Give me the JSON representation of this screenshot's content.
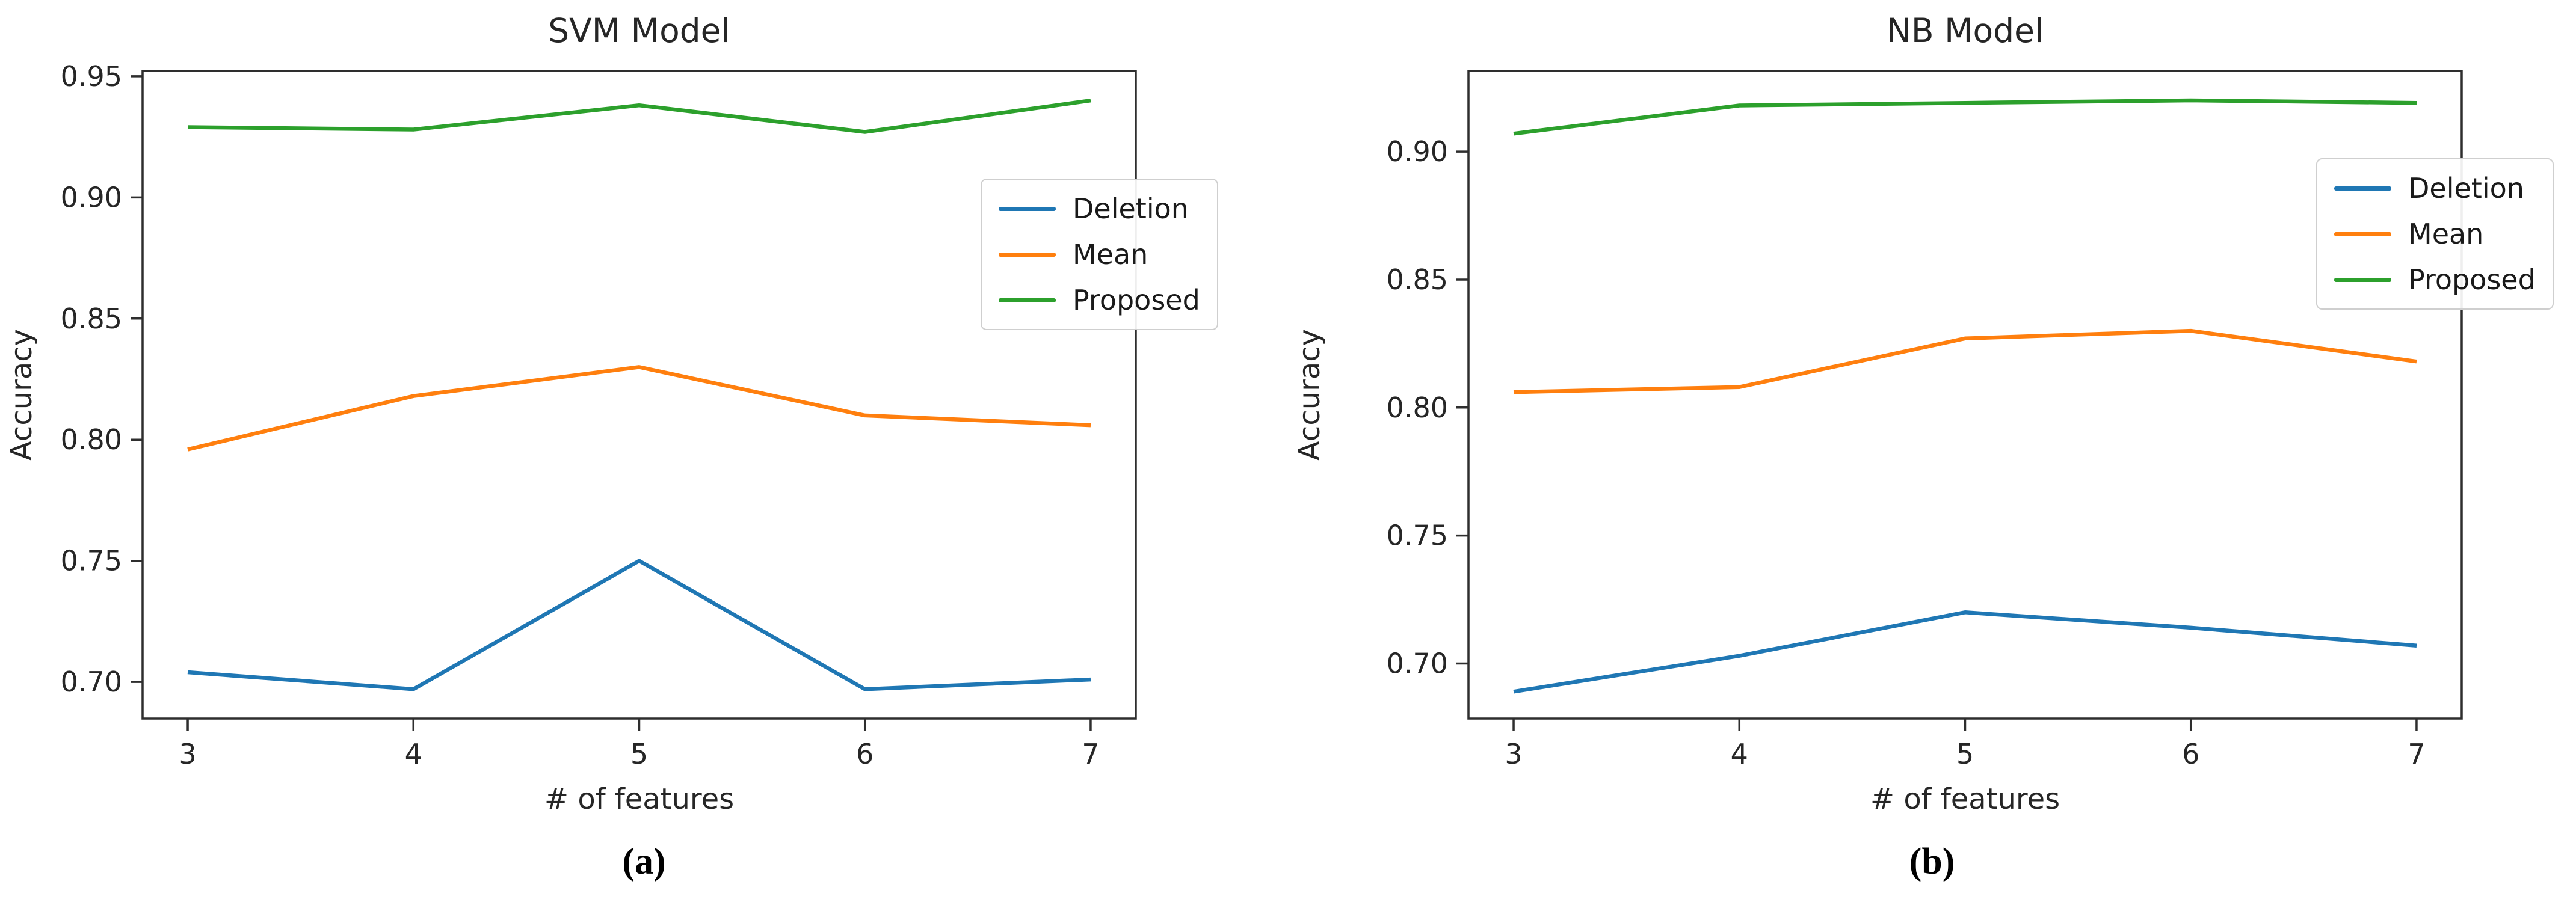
{
  "figure": {
    "background": "#ffffff",
    "text_color": "#262626",
    "spine_color": "#2e2e2e",
    "legend_border_color": "#cfcfcf"
  },
  "chart_data": [
    {
      "type": "line",
      "id": "svm",
      "title": "SVM Model",
      "xlabel": "# of features",
      "ylabel": "Accuracy",
      "x": [
        3,
        4,
        5,
        6,
        7
      ],
      "xlim": [
        2.8,
        7.2
      ],
      "ylim": [
        0.6849,
        0.9522
      ],
      "xticks": [
        3,
        4,
        5,
        6,
        7
      ],
      "xtick_labels": [
        "3",
        "4",
        "5",
        "6",
        "7"
      ],
      "yticks": [
        0.7,
        0.75,
        0.8,
        0.85,
        0.9,
        0.95
      ],
      "ytick_labels": [
        "0.70",
        "0.75",
        "0.80",
        "0.85",
        "0.90",
        "0.95"
      ],
      "grid": false,
      "legend_position": "upper right, overlapping right spine",
      "series": [
        {
          "name": "Deletion",
          "color": "#1f77b4",
          "values": [
            0.704,
            0.697,
            0.75,
            0.697,
            0.701
          ]
        },
        {
          "name": "Mean",
          "color": "#ff7f0e",
          "values": [
            0.796,
            0.818,
            0.83,
            0.81,
            0.806
          ]
        },
        {
          "name": "Proposed",
          "color": "#2ca02c",
          "values": [
            0.929,
            0.928,
            0.938,
            0.927,
            0.94
          ]
        }
      ],
      "legend_items": [
        "Deletion",
        "Mean",
        "Proposed"
      ],
      "caption": "(a)"
    },
    {
      "type": "line",
      "id": "nb",
      "title": "NB Model",
      "xlabel": "# of features",
      "ylabel": "Accuracy",
      "x": [
        3,
        4,
        5,
        6,
        7
      ],
      "xlim": [
        2.8,
        7.2
      ],
      "ylim": [
        0.6785,
        0.9315
      ],
      "xticks": [
        3,
        4,
        5,
        6,
        7
      ],
      "xtick_labels": [
        "3",
        "4",
        "5",
        "6",
        "7"
      ],
      "yticks": [
        0.7,
        0.75,
        0.8,
        0.85,
        0.9
      ],
      "ytick_labels": [
        "0.70",
        "0.75",
        "0.80",
        "0.85",
        "0.90"
      ],
      "grid": false,
      "legend_position": "upper right, overlapping right spine",
      "series": [
        {
          "name": "Deletion",
          "color": "#1f77b4",
          "values": [
            0.689,
            0.703,
            0.72,
            0.714,
            0.707
          ]
        },
        {
          "name": "Mean",
          "color": "#ff7f0e",
          "values": [
            0.806,
            0.808,
            0.827,
            0.83,
            0.818
          ]
        },
        {
          "name": "Proposed",
          "color": "#2ca02c",
          "values": [
            0.907,
            0.918,
            0.919,
            0.92,
            0.919
          ]
        }
      ],
      "legend_items": [
        "Deletion",
        "Mean",
        "Proposed"
      ],
      "caption": "(b)"
    }
  ]
}
